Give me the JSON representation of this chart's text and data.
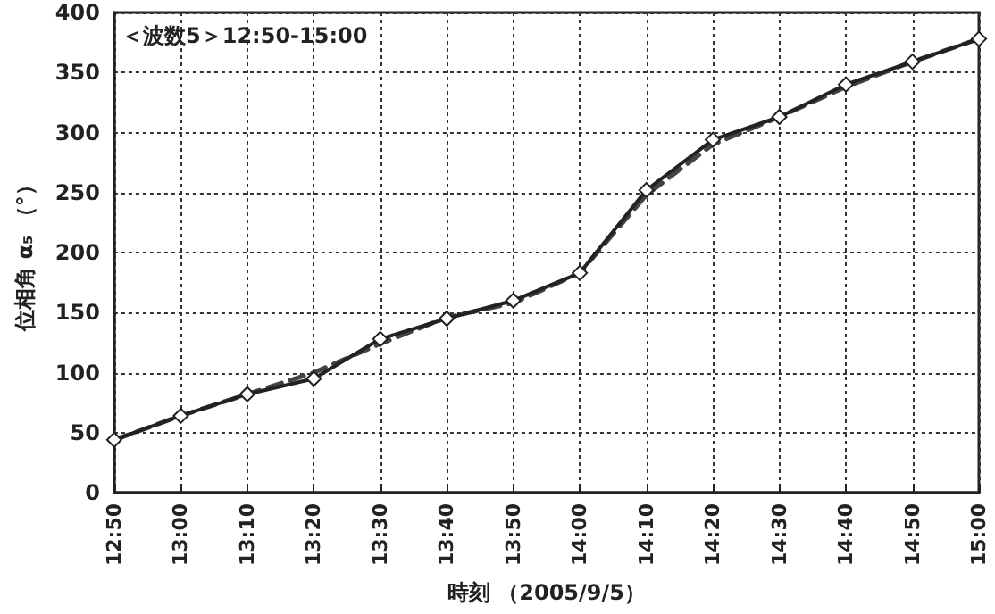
{
  "chart_data": {
    "type": "line",
    "xlabel": "時刻 （2005/9/5）",
    "ylabel": "位相角 α₅ （°）",
    "annotations": [
      "＜波数5＞12:50-15:00"
    ],
    "categories": [
      "12:50",
      "13:00",
      "13:10",
      "13:20",
      "13:30",
      "13:40",
      "13:50",
      "14:00",
      "14:10",
      "14:20",
      "14:30",
      "14:40",
      "14:50",
      "15:00"
    ],
    "series": [
      {
        "color": "#222222",
        "marker": "diamond",
        "line_style": "solid",
        "values": [
          44,
          64,
          82,
          95,
          128,
          145,
          160,
          183,
          252,
          294,
          313,
          340,
          359,
          378
        ]
      },
      {
        "color": "#444444",
        "marker": "none",
        "line_style": "dashed",
        "values": [
          44,
          64,
          82,
          100,
          124,
          146,
          158,
          183,
          248,
          290,
          313,
          338,
          359,
          378
        ]
      }
    ],
    "ylim": [
      0,
      400
    ],
    "yticks": [
      0,
      50,
      100,
      150,
      200,
      250,
      300,
      350,
      400
    ],
    "grid": true
  }
}
